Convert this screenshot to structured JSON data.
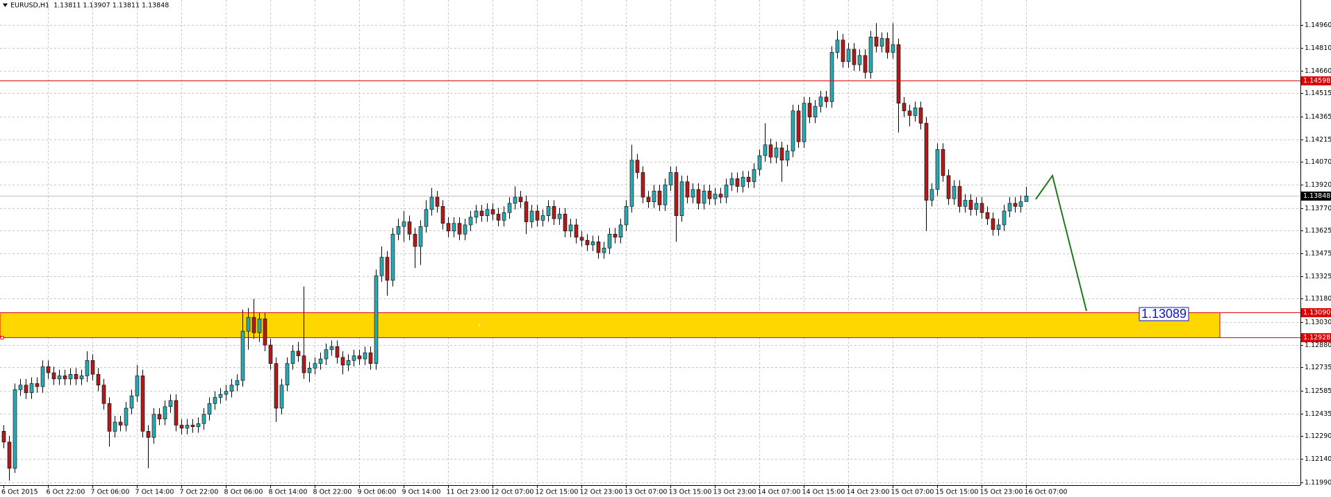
{
  "chart_data": {
    "type": "candlestick",
    "title": "EURUSD,H1  1.13811 1.13907 1.13811 1.13848",
    "up_color": "#2aa8b2",
    "down_color": "#b01c1c",
    "wick_color": "#000000",
    "grid": true,
    "ylim": [
      1.1197,
      1.1512
    ],
    "yticks": [
      {
        "value": 1.1496,
        "label": "1.14960"
      },
      {
        "value": 1.1481,
        "label": "1.14810"
      },
      {
        "value": 1.1466,
        "label": "1.14660"
      },
      1.14515,
      1.14365,
      1.14215,
      {
        "value": 1.1407,
        "label": "1.14070"
      },
      {
        "value": 1.1392,
        "label": "1.13920"
      },
      {
        "value": 1.1377,
        "label": "1.13770"
      },
      1.13625,
      1.13475,
      1.13325,
      {
        "value": 1.1318,
        "label": "1.13180"
      },
      {
        "value": 1.1303,
        "label": "1.13030"
      },
      {
        "value": 1.1288,
        "label": "1.12880"
      },
      1.12735,
      1.12585,
      1.12435,
      {
        "value": 1.1229,
        "label": "1.12290"
      },
      {
        "value": 1.1214,
        "label": "1.12140"
      },
      {
        "value": 1.1199,
        "label": "1.11990"
      }
    ],
    "levels": [
      {
        "value": 1.14598,
        "color": "#e00000",
        "bg": "#e00000"
      },
      {
        "value": 1.13848,
        "color": "#c0c0c0",
        "bg": "#000000"
      },
      {
        "value": 1.1309,
        "label": "1.13090",
        "color": "#e00000",
        "bg": "#e00000"
      },
      {
        "value": 1.12928,
        "color": "#e00000",
        "bg": "#e00000"
      }
    ],
    "zone": {
      "low": 1.12928,
      "high": 1.1309,
      "color": "#ffd700",
      "border": "#e00000"
    },
    "annotation": "1.13089",
    "annotation_color": "#1010d0",
    "arrow_color": "#1a7a1a",
    "categories": [
      "6 Oct 2015",
      null,
      null,
      null,
      null,
      null,
      null,
      null,
      "6 Oct 22:00",
      null,
      null,
      null,
      null,
      null,
      null,
      null,
      "7 Oct 06:00",
      null,
      null,
      null,
      null,
      null,
      null,
      null,
      "7 Oct 14:00",
      null,
      null,
      null,
      null,
      null,
      null,
      null,
      "7 Oct 22:00",
      null,
      null,
      null,
      null,
      null,
      null,
      null,
      "8 Oct 06:00",
      null,
      null,
      null,
      null,
      null,
      null,
      null,
      "8 Oct 14:00",
      null,
      null,
      null,
      null,
      null,
      null,
      null,
      "8 Oct 22:00",
      null,
      null,
      null,
      null,
      null,
      null,
      null,
      "9 Oct 06:00",
      null,
      null,
      null,
      null,
      null,
      null,
      null,
      "9 Oct 14:00",
      null,
      null,
      null,
      null,
      null,
      null,
      null,
      "11 Oct 23:00",
      null,
      null,
      null,
      null,
      null,
      null,
      null,
      "12 Oct 07:00",
      null,
      null,
      null,
      null,
      null,
      null,
      null,
      "12 Oct 15:00",
      null,
      null,
      null,
      null,
      null,
      null,
      null,
      "12 Oct 23:00",
      null,
      null,
      null,
      null,
      null,
      null,
      null,
      "13 Oct 07:00",
      null,
      null,
      null,
      null,
      null,
      null,
      null,
      "13 Oct 15:00",
      null,
      null,
      null,
      null,
      null,
      null,
      null,
      "13 Oct 23:00",
      null,
      null,
      null,
      null,
      null,
      null,
      null,
      "14 Oct 07:00",
      null,
      null,
      null,
      null,
      null,
      null,
      null,
      "14 Oct 15:00",
      null,
      null,
      null,
      null,
      null,
      null,
      null,
      "14 Oct 23:00",
      null,
      null,
      null,
      null,
      null,
      null,
      null,
      "15 Oct 07:00",
      null,
      null,
      null,
      null,
      null,
      null,
      null,
      "15 Oct 15:00",
      null,
      null,
      null,
      null,
      null,
      null,
      null,
      "15 Oct 23:00",
      null,
      null,
      null,
      null,
      null,
      null,
      null,
      "16 Oct 07:00"
    ],
    "candles": [
      [
        1.1232,
        1.1236,
        1.1221,
        1.1225
      ],
      [
        1.1225,
        1.1229,
        1.12,
        1.1208
      ],
      [
        1.1208,
        1.1263,
        1.1205,
        1.1259
      ],
      [
        1.1259,
        1.1266,
        1.1255,
        1.1262
      ],
      [
        1.1262,
        1.1266,
        1.1253,
        1.1257
      ],
      [
        1.1257,
        1.1267,
        1.1253,
        1.1263
      ],
      [
        1.1263,
        1.1267,
        1.1257,
        1.1261
      ],
      [
        1.1261,
        1.1278,
        1.1257,
        1.1274
      ],
      [
        1.1274,
        1.1278,
        1.1266,
        1.127
      ],
      [
        1.127,
        1.1274,
        1.1262,
        1.1266
      ],
      [
        1.1266,
        1.1272,
        1.1262,
        1.1268
      ],
      [
        1.1268,
        1.1272,
        1.1262,
        1.1266
      ],
      [
        1.1266,
        1.1273,
        1.1262,
        1.1269
      ],
      [
        1.1269,
        1.1273,
        1.1262,
        1.1266
      ],
      [
        1.1266,
        1.1272,
        1.1262,
        1.1268
      ],
      [
        1.1268,
        1.1284,
        1.1264,
        1.1278
      ],
      [
        1.1278,
        1.1282,
        1.1265,
        1.1269
      ],
      [
        1.1269,
        1.1273,
        1.1258,
        1.1262
      ],
      [
        1.1262,
        1.1266,
        1.1246,
        1.125
      ],
      [
        1.125,
        1.1254,
        1.1222,
        1.1232
      ],
      [
        1.1232,
        1.1242,
        1.1228,
        1.1238
      ],
      [
        1.1238,
        1.1242,
        1.1232,
        1.1236
      ],
      [
        1.1236,
        1.1251,
        1.1232,
        1.1247
      ],
      [
        1.1247,
        1.1259,
        1.1243,
        1.1255
      ],
      [
        1.1255,
        1.1275,
        1.1251,
        1.1268
      ],
      [
        1.1268,
        1.1272,
        1.1228,
        1.1232
      ],
      [
        1.1232,
        1.1236,
        1.1208,
        1.1228
      ],
      [
        1.1228,
        1.1247,
        1.1224,
        1.1243
      ],
      [
        1.1243,
        1.1247,
        1.1236,
        1.124
      ],
      [
        1.124,
        1.1252,
        1.1236,
        1.1248
      ],
      [
        1.1248,
        1.1256,
        1.1244,
        1.1252
      ],
      [
        1.1252,
        1.1256,
        1.1232,
        1.1236
      ],
      [
        1.1236,
        1.124,
        1.123,
        1.1234
      ],
      [
        1.1234,
        1.124,
        1.123,
        1.1236
      ],
      [
        1.1236,
        1.124,
        1.1231,
        1.1235
      ],
      [
        1.1235,
        1.1241,
        1.1231,
        1.1237
      ],
      [
        1.1237,
        1.1247,
        1.1233,
        1.1243
      ],
      [
        1.1243,
        1.1254,
        1.1239,
        1.125
      ],
      [
        1.125,
        1.1258,
        1.1246,
        1.1254
      ],
      [
        1.1254,
        1.126,
        1.125,
        1.1256
      ],
      [
        1.1256,
        1.1262,
        1.1252,
        1.1258
      ],
      [
        1.1258,
        1.1266,
        1.1254,
        1.1262
      ],
      [
        1.1262,
        1.1269,
        1.1258,
        1.1265
      ],
      [
        1.1265,
        1.1311,
        1.1261,
        1.1297
      ],
      [
        1.1297,
        1.1312,
        1.1285,
        1.1306
      ],
      [
        1.1306,
        1.1318,
        1.1292,
        1.1296
      ],
      [
        1.1296,
        1.1309,
        1.129,
        1.1305
      ],
      [
        1.1305,
        1.1309,
        1.1284,
        1.1288
      ],
      [
        1.1288,
        1.1292,
        1.1272,
        1.1276
      ],
      [
        1.1276,
        1.128,
        1.1238,
        1.1247
      ],
      [
        1.1247,
        1.1266,
        1.1243,
        1.1262
      ],
      [
        1.1262,
        1.128,
        1.1258,
        1.1276
      ],
      [
        1.1276,
        1.1288,
        1.1272,
        1.1284
      ],
      [
        1.1284,
        1.129,
        1.1277,
        1.1281
      ],
      [
        1.1281,
        1.1326,
        1.1266,
        1.127
      ],
      [
        1.127,
        1.1277,
        1.1264,
        1.1273
      ],
      [
        1.1273,
        1.128,
        1.1269,
        1.1276
      ],
      [
        1.1276,
        1.1283,
        1.1272,
        1.1279
      ],
      [
        1.1279,
        1.1289,
        1.1275,
        1.1285
      ],
      [
        1.1285,
        1.1291,
        1.1281,
        1.1287
      ],
      [
        1.1287,
        1.1291,
        1.1276,
        1.128
      ],
      [
        1.128,
        1.1284,
        1.1269,
        1.1275
      ],
      [
        1.1275,
        1.1282,
        1.1271,
        1.1278
      ],
      [
        1.1278,
        1.1285,
        1.1274,
        1.1281
      ],
      [
        1.1281,
        1.1285,
        1.1275,
        1.1279
      ],
      [
        1.1279,
        1.1287,
        1.1275,
        1.1283
      ],
      [
        1.1283,
        1.1287,
        1.1272,
        1.1276
      ],
      [
        1.1276,
        1.1337,
        1.1272,
        1.1333
      ],
      [
        1.1333,
        1.1352,
        1.1329,
        1.1345
      ],
      [
        1.1345,
        1.1349,
        1.132,
        1.133
      ],
      [
        1.133,
        1.1364,
        1.1326,
        1.136
      ],
      [
        1.136,
        1.137,
        1.1356,
        1.1365
      ],
      [
        1.1365,
        1.1375,
        1.1355,
        1.1368
      ],
      [
        1.1368,
        1.1372,
        1.1356,
        1.136
      ],
      [
        1.136,
        1.1364,
        1.1338,
        1.1352
      ],
      [
        1.1352,
        1.1369,
        1.134,
        1.1365
      ],
      [
        1.1365,
        1.1382,
        1.1361,
        1.1376
      ],
      [
        1.1376,
        1.139,
        1.1372,
        1.1384
      ],
      [
        1.1384,
        1.1388,
        1.1374,
        1.1378
      ],
      [
        1.1378,
        1.1382,
        1.1363,
        1.1367
      ],
      [
        1.1367,
        1.1371,
        1.1358,
        1.1362
      ],
      [
        1.1362,
        1.1371,
        1.1358,
        1.1367
      ],
      [
        1.1367,
        1.1371,
        1.1356,
        1.136
      ],
      [
        1.136,
        1.137,
        1.1356,
        1.1366
      ],
      [
        1.1366,
        1.1375,
        1.1362,
        1.1371
      ],
      [
        1.1371,
        1.1379,
        1.1367,
        1.1375
      ],
      [
        1.1375,
        1.1379,
        1.1368,
        1.1372
      ],
      [
        1.1372,
        1.138,
        1.1368,
        1.1376
      ],
      [
        1.1376,
        1.138,
        1.1369,
        1.1373
      ],
      [
        1.1373,
        1.1377,
        1.1365,
        1.1369
      ],
      [
        1.1369,
        1.1378,
        1.1365,
        1.1374
      ],
      [
        1.1374,
        1.1384,
        1.137,
        1.138
      ],
      [
        1.138,
        1.1391,
        1.1376,
        1.1384
      ],
      [
        1.1384,
        1.1388,
        1.1377,
        1.1381
      ],
      [
        1.1381,
        1.1385,
        1.136,
        1.1368
      ],
      [
        1.1368,
        1.1379,
        1.1364,
        1.1375
      ],
      [
        1.1375,
        1.1379,
        1.1365,
        1.1369
      ],
      [
        1.1369,
        1.1376,
        1.1365,
        1.1372
      ],
      [
        1.1372,
        1.1382,
        1.1368,
        1.1378
      ],
      [
        1.1378,
        1.1382,
        1.1366,
        1.137
      ],
      [
        1.137,
        1.1377,
        1.1366,
        1.1373
      ],
      [
        1.1373,
        1.1377,
        1.1358,
        1.1362
      ],
      [
        1.1362,
        1.137,
        1.1358,
        1.1366
      ],
      [
        1.1366,
        1.137,
        1.1354,
        1.1358
      ],
      [
        1.1358,
        1.1362,
        1.1352,
        1.1356
      ],
      [
        1.1356,
        1.136,
        1.1349,
        1.1353
      ],
      [
        1.1353,
        1.1359,
        1.1349,
        1.1355
      ],
      [
        1.1355,
        1.1359,
        1.1344,
        1.1348
      ],
      [
        1.1348,
        1.1355,
        1.1344,
        1.1351
      ],
      [
        1.1351,
        1.1364,
        1.1347,
        1.136
      ],
      [
        1.136,
        1.1364,
        1.1354,
        1.1358
      ],
      [
        1.1358,
        1.137,
        1.1354,
        1.1366
      ],
      [
        1.1366,
        1.1382,
        1.1362,
        1.1378
      ],
      [
        1.1378,
        1.1418,
        1.1374,
        1.1408
      ],
      [
        1.1408,
        1.1412,
        1.1396,
        1.14
      ],
      [
        1.14,
        1.1404,
        1.138,
        1.1384
      ],
      [
        1.1384,
        1.1388,
        1.1377,
        1.1381
      ],
      [
        1.1381,
        1.1392,
        1.1377,
        1.1388
      ],
      [
        1.1388,
        1.1392,
        1.1375,
        1.1379
      ],
      [
        1.1379,
        1.1396,
        1.1375,
        1.1392
      ],
      [
        1.1392,
        1.1404,
        1.1388,
        1.14
      ],
      [
        1.14,
        1.1404,
        1.1355,
        1.1372
      ],
      [
        1.1372,
        1.1398,
        1.1368,
        1.1394
      ],
      [
        1.1394,
        1.1398,
        1.138,
        1.1384
      ],
      [
        1.1384,
        1.1393,
        1.138,
        1.1389
      ],
      [
        1.1389,
        1.1393,
        1.1376,
        1.138
      ],
      [
        1.138,
        1.1392,
        1.1376,
        1.1388
      ],
      [
        1.1388,
        1.1392,
        1.1379,
        1.1383
      ],
      [
        1.1383,
        1.139,
        1.1379,
        1.1386
      ],
      [
        1.1386,
        1.139,
        1.138,
        1.1384
      ],
      [
        1.1384,
        1.1396,
        1.138,
        1.1392
      ],
      [
        1.1392,
        1.14,
        1.1388,
        1.1396
      ],
      [
        1.1396,
        1.14,
        1.1387,
        1.1391
      ],
      [
        1.1391,
        1.1401,
        1.1387,
        1.1397
      ],
      [
        1.1397,
        1.1401,
        1.139,
        1.1394
      ],
      [
        1.1394,
        1.1406,
        1.139,
        1.1402
      ],
      [
        1.1402,
        1.1415,
        1.1398,
        1.1411
      ],
      [
        1.1411,
        1.1432,
        1.1407,
        1.1418
      ],
      [
        1.1418,
        1.1422,
        1.1406,
        1.141
      ],
      [
        1.141,
        1.142,
        1.1406,
        1.1416
      ],
      [
        1.1416,
        1.142,
        1.1394,
        1.1408
      ],
      [
        1.1408,
        1.1418,
        1.1404,
        1.1414
      ],
      [
        1.1414,
        1.1444,
        1.141,
        1.144
      ],
      [
        1.144,
        1.1444,
        1.1416,
        1.142
      ],
      [
        1.142,
        1.1449,
        1.1416,
        1.1445
      ],
      [
        1.1445,
        1.1449,
        1.1432,
        1.1436
      ],
      [
        1.1436,
        1.1447,
        1.1432,
        1.1443
      ],
      [
        1.1443,
        1.1453,
        1.1439,
        1.1449
      ],
      [
        1.1449,
        1.1453,
        1.1442,
        1.1446
      ],
      [
        1.1446,
        1.1482,
        1.1442,
        1.1478
      ],
      [
        1.1478,
        1.1492,
        1.1474,
        1.1486
      ],
      [
        1.1486,
        1.149,
        1.1468,
        1.1472
      ],
      [
        1.1472,
        1.1484,
        1.1468,
        1.148
      ],
      [
        1.148,
        1.1484,
        1.1466,
        1.147
      ],
      [
        1.147,
        1.148,
        1.1466,
        1.1476
      ],
      [
        1.1476,
        1.148,
        1.1461,
        1.1465
      ],
      [
        1.1465,
        1.1492,
        1.1461,
        1.1488
      ],
      [
        1.1488,
        1.1497,
        1.1478,
        1.1482
      ],
      [
        1.1482,
        1.1491,
        1.1478,
        1.1487
      ],
      [
        1.1487,
        1.1491,
        1.1474,
        1.1478
      ],
      [
        1.1478,
        1.1497,
        1.1474,
        1.1483
      ],
      [
        1.1483,
        1.1487,
        1.1426,
        1.1445
      ],
      [
        1.1445,
        1.1449,
        1.1436,
        1.144
      ],
      [
        1.144,
        1.1444,
        1.143,
        1.1437
      ],
      [
        1.1437,
        1.1446,
        1.1433,
        1.1442
      ],
      [
        1.1442,
        1.1446,
        1.1428,
        1.1432
      ],
      [
        1.1432,
        1.1436,
        1.1362,
        1.1382
      ],
      [
        1.1382,
        1.1393,
        1.1378,
        1.1389
      ],
      [
        1.1389,
        1.1419,
        1.1385,
        1.1415
      ],
      [
        1.1415,
        1.1419,
        1.1394,
        1.1398
      ],
      [
        1.1398,
        1.1402,
        1.1379,
        1.1383
      ],
      [
        1.1383,
        1.1395,
        1.1379,
        1.1391
      ],
      [
        1.1391,
        1.1395,
        1.1374,
        1.1378
      ],
      [
        1.1378,
        1.1386,
        1.1374,
        1.1382
      ],
      [
        1.1382,
        1.1386,
        1.1372,
        1.1376
      ],
      [
        1.1376,
        1.1384,
        1.1372,
        1.138
      ],
      [
        1.138,
        1.1384,
        1.137,
        1.1374
      ],
      [
        1.1374,
        1.1378,
        1.1366,
        1.137
      ],
      [
        1.137,
        1.1374,
        1.1359,
        1.1363
      ],
      [
        1.1363,
        1.137,
        1.1359,
        1.1366
      ],
      [
        1.1366,
        1.1379,
        1.1362,
        1.1375
      ],
      [
        1.1375,
        1.1384,
        1.1371,
        1.138
      ],
      [
        1.138,
        1.1384,
        1.1374,
        1.1378
      ],
      [
        1.1378,
        1.1385,
        1.1374,
        1.1381
      ],
      [
        1.13811,
        1.13907,
        1.13811,
        1.13848
      ]
    ]
  }
}
